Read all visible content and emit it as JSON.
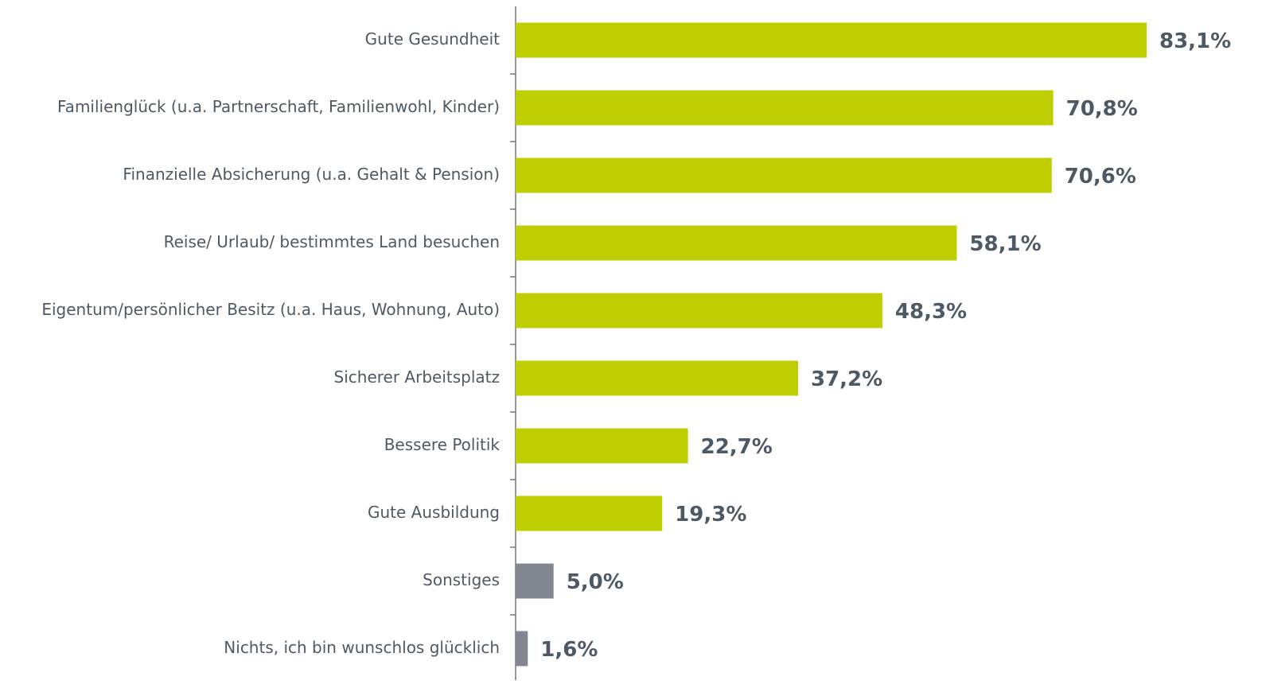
{
  "chart_data": {
    "type": "bar",
    "orientation": "horizontal",
    "categories": [
      "Gute Gesundheit",
      "Familienglück (u.a. Partnerschaft, Familienwohl, Kinder)",
      "Finanzielle Absicherung (u.a. Gehalt & Pension)",
      "Reise/ Urlaub/ bestimmtes Land besuchen",
      "Eigentum/persönlicher Besitz (u.a. Haus, Wohnung, Auto)",
      "Sicherer Arbeitsplatz",
      "Bessere Politik",
      "Gute Ausbildung",
      "Sonstiges",
      "Nichts, ich bin wunschlos glücklich"
    ],
    "values": [
      83.1,
      70.8,
      70.6,
      58.1,
      48.3,
      37.2,
      22.7,
      19.3,
      5.0,
      1.6
    ],
    "value_labels": [
      "83,1%",
      "70,8%",
      "70,6%",
      "58,1%",
      "48,3%",
      "37,2%",
      "22,7%",
      "19,3%",
      "5,0%",
      "1,6%"
    ],
    "colors": [
      "#bfce00",
      "#bfce00",
      "#bfce00",
      "#bfce00",
      "#bfce00",
      "#bfce00",
      "#bfce00",
      "#bfce00",
      "#80878f",
      "#80878f"
    ]
  }
}
